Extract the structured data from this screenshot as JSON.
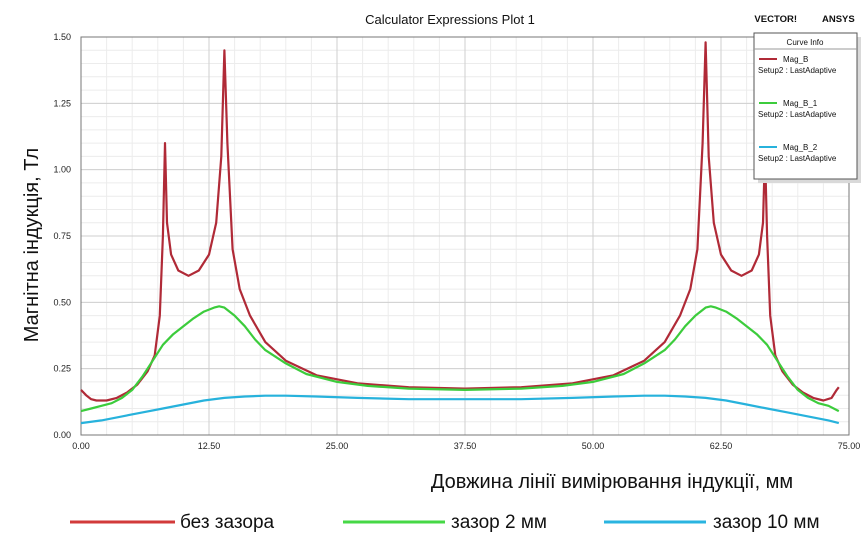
{
  "chart_data": {
    "type": "line",
    "title": "Calculator Expressions Plot 1",
    "brand_left": "VECTOR!",
    "brand_right": "ANSYS",
    "xlabel": "Довжина лінії вимірювання індукції, мм",
    "ylabel": "Магнітна індукція, Тл",
    "xlim": [
      0,
      75
    ],
    "ylim": [
      0,
      1.5
    ],
    "xticks": [
      "0.00",
      "12.50",
      "25.00",
      "37.50",
      "50.00",
      "62.50",
      "75.00"
    ],
    "yticks": [
      "0.00",
      "0.25",
      "0.50",
      "0.75",
      "1.00",
      "1.25",
      "1.50"
    ],
    "grid": true,
    "curve_info": {
      "header": "Curve Info",
      "entries": [
        {
          "name": "Mag_B",
          "setup": "Setup2 : LastAdaptive",
          "color": "#b02a37"
        },
        {
          "name": "Mag_B_1",
          "setup": "Setup2 : LastAdaptive",
          "color": "#3ccc3c"
        },
        {
          "name": "Mag_B_2",
          "setup": "Setup2 : LastAdaptive",
          "color": "#27b2dc"
        }
      ]
    },
    "legend": [
      {
        "label": "без зазора",
        "color": "#d23a3a"
      },
      {
        "label": "зазор 2 мм",
        "color": "#46d846"
      },
      {
        "label": "зазор 10 мм",
        "color": "#2ab4e0"
      }
    ],
    "series": [
      {
        "name": "Mag_B",
        "color": "#b02a37",
        "points": [
          [
            0,
            0.17
          ],
          [
            0.5,
            0.15
          ],
          [
            1,
            0.135
          ],
          [
            1.5,
            0.13
          ],
          [
            2.5,
            0.13
          ],
          [
            3.5,
            0.14
          ],
          [
            4.5,
            0.16
          ],
          [
            5.5,
            0.19
          ],
          [
            6.5,
            0.24
          ],
          [
            7.2,
            0.3
          ],
          [
            7.7,
            0.45
          ],
          [
            8.0,
            0.75
          ],
          [
            8.2,
            1.1
          ],
          [
            8.4,
            0.8
          ],
          [
            8.8,
            0.68
          ],
          [
            9.5,
            0.62
          ],
          [
            10.5,
            0.6
          ],
          [
            11.5,
            0.62
          ],
          [
            12.5,
            0.68
          ],
          [
            13.2,
            0.8
          ],
          [
            13.7,
            1.05
          ],
          [
            14.0,
            1.45
          ],
          [
            14.3,
            1.1
          ],
          [
            14.8,
            0.7
          ],
          [
            15.5,
            0.55
          ],
          [
            16.5,
            0.45
          ],
          [
            18,
            0.35
          ],
          [
            20,
            0.28
          ],
          [
            23,
            0.225
          ],
          [
            27,
            0.195
          ],
          [
            32,
            0.18
          ],
          [
            37.5,
            0.175
          ],
          [
            43,
            0.18
          ],
          [
            48,
            0.195
          ],
          [
            52,
            0.225
          ],
          [
            55,
            0.28
          ],
          [
            57,
            0.35
          ],
          [
            58.5,
            0.45
          ],
          [
            59.5,
            0.55
          ],
          [
            60.2,
            0.7
          ],
          [
            60.7,
            1.1
          ],
          [
            61.0,
            1.48
          ],
          [
            61.3,
            1.05
          ],
          [
            61.8,
            0.8
          ],
          [
            62.5,
            0.68
          ],
          [
            63.5,
            0.62
          ],
          [
            64.5,
            0.6
          ],
          [
            65.5,
            0.62
          ],
          [
            66.2,
            0.68
          ],
          [
            66.6,
            0.8
          ],
          [
            66.8,
            1.07
          ],
          [
            67.0,
            0.75
          ],
          [
            67.3,
            0.45
          ],
          [
            67.8,
            0.3
          ],
          [
            68.5,
            0.24
          ],
          [
            69.5,
            0.19
          ],
          [
            70.5,
            0.16
          ],
          [
            71.5,
            0.14
          ],
          [
            72.5,
            0.13
          ],
          [
            73.3,
            0.14
          ],
          [
            73.8,
            0.17
          ],
          [
            74,
            0.18
          ]
        ]
      },
      {
        "name": "Mag_B_1",
        "color": "#3ccc3c",
        "points": [
          [
            0,
            0.09
          ],
          [
            1,
            0.1
          ],
          [
            2,
            0.11
          ],
          [
            3,
            0.12
          ],
          [
            4,
            0.14
          ],
          [
            5,
            0.17
          ],
          [
            6,
            0.22
          ],
          [
            7,
            0.28
          ],
          [
            8,
            0.34
          ],
          [
            9,
            0.38
          ],
          [
            10,
            0.41
          ],
          [
            11,
            0.44
          ],
          [
            12,
            0.465
          ],
          [
            13,
            0.48
          ],
          [
            13.5,
            0.485
          ],
          [
            14,
            0.48
          ],
          [
            15,
            0.45
          ],
          [
            16,
            0.41
          ],
          [
            17,
            0.36
          ],
          [
            18,
            0.32
          ],
          [
            20,
            0.27
          ],
          [
            22,
            0.23
          ],
          [
            25,
            0.2
          ],
          [
            28,
            0.185
          ],
          [
            32,
            0.175
          ],
          [
            37.5,
            0.17
          ],
          [
            43,
            0.175
          ],
          [
            47,
            0.185
          ],
          [
            50,
            0.2
          ],
          [
            53,
            0.23
          ],
          [
            55,
            0.27
          ],
          [
            57,
            0.32
          ],
          [
            58,
            0.36
          ],
          [
            59,
            0.41
          ],
          [
            60,
            0.45
          ],
          [
            61,
            0.48
          ],
          [
            61.5,
            0.485
          ],
          [
            62,
            0.48
          ],
          [
            63,
            0.465
          ],
          [
            64,
            0.44
          ],
          [
            65,
            0.41
          ],
          [
            66,
            0.38
          ],
          [
            67,
            0.34
          ],
          [
            68,
            0.28
          ],
          [
            69,
            0.22
          ],
          [
            70,
            0.17
          ],
          [
            71,
            0.14
          ],
          [
            72,
            0.12
          ],
          [
            73,
            0.11
          ],
          [
            74,
            0.09
          ]
        ]
      },
      {
        "name": "Mag_B_2",
        "color": "#27b2dc",
        "points": [
          [
            0,
            0.045
          ],
          [
            2,
            0.055
          ],
          [
            4,
            0.07
          ],
          [
            6,
            0.085
          ],
          [
            8,
            0.1
          ],
          [
            10,
            0.115
          ],
          [
            12,
            0.13
          ],
          [
            14,
            0.14
          ],
          [
            16,
            0.145
          ],
          [
            18,
            0.148
          ],
          [
            20,
            0.148
          ],
          [
            23,
            0.145
          ],
          [
            27,
            0.14
          ],
          [
            32,
            0.135
          ],
          [
            37.5,
            0.135
          ],
          [
            43,
            0.135
          ],
          [
            48,
            0.14
          ],
          [
            52,
            0.145
          ],
          [
            55,
            0.148
          ],
          [
            57,
            0.148
          ],
          [
            59,
            0.145
          ],
          [
            61,
            0.14
          ],
          [
            63,
            0.13
          ],
          [
            65,
            0.115
          ],
          [
            67,
            0.1
          ],
          [
            69,
            0.085
          ],
          [
            71,
            0.07
          ],
          [
            73,
            0.055
          ],
          [
            74,
            0.045
          ]
        ]
      }
    ]
  }
}
